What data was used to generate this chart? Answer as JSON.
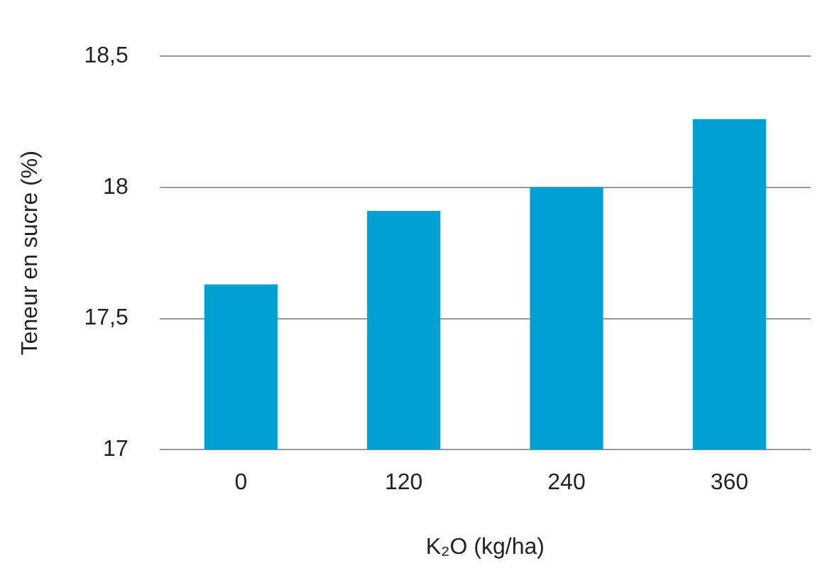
{
  "chart_data": {
    "type": "bar",
    "xlabel": "K₂O (kg/ha)",
    "ylabel": "Teneur en sucre (%)",
    "categories": [
      "0",
      "120",
      "240",
      "360"
    ],
    "values": [
      17.63,
      17.91,
      18.0,
      18.26
    ],
    "color": "#00a0d2",
    "ylim": [
      17,
      18.5
    ],
    "yticks": [
      17,
      {
        "value": 17.5,
        "label": "17,5"
      },
      18,
      {
        "value": 18.5,
        "label": "18,5"
      }
    ],
    "grid": "y"
  }
}
